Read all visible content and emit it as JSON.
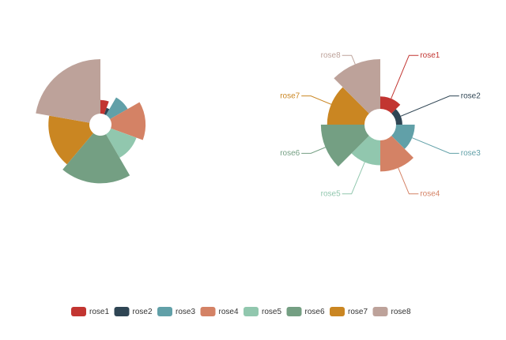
{
  "chart_data": [
    {
      "type": "pie",
      "rose_type": "radius",
      "categories": [
        "rose1",
        "rose2",
        "rose3",
        "rose4",
        "rose5",
        "rose6",
        "rose7",
        "rose8"
      ],
      "values": [
        10,
        5,
        15,
        25,
        20,
        35,
        30,
        40
      ],
      "colors": [
        "#c23531",
        "#2f4554",
        "#61a0a8",
        "#d48265",
        "#91c7ae",
        "#749f83",
        "#ca8622",
        "#bda29a"
      ],
      "labels": false
    },
    {
      "type": "pie",
      "rose_type": "area",
      "categories": [
        "rose1",
        "rose2",
        "rose3",
        "rose4",
        "rose5",
        "rose6",
        "rose7",
        "rose8"
      ],
      "values": [
        10,
        5,
        15,
        25,
        20,
        35,
        30,
        40
      ],
      "colors": [
        "#c23531",
        "#2f4554",
        "#61a0a8",
        "#d48265",
        "#91c7ae",
        "#749f83",
        "#ca8622",
        "#bda29a"
      ],
      "labels": true
    }
  ]
}
